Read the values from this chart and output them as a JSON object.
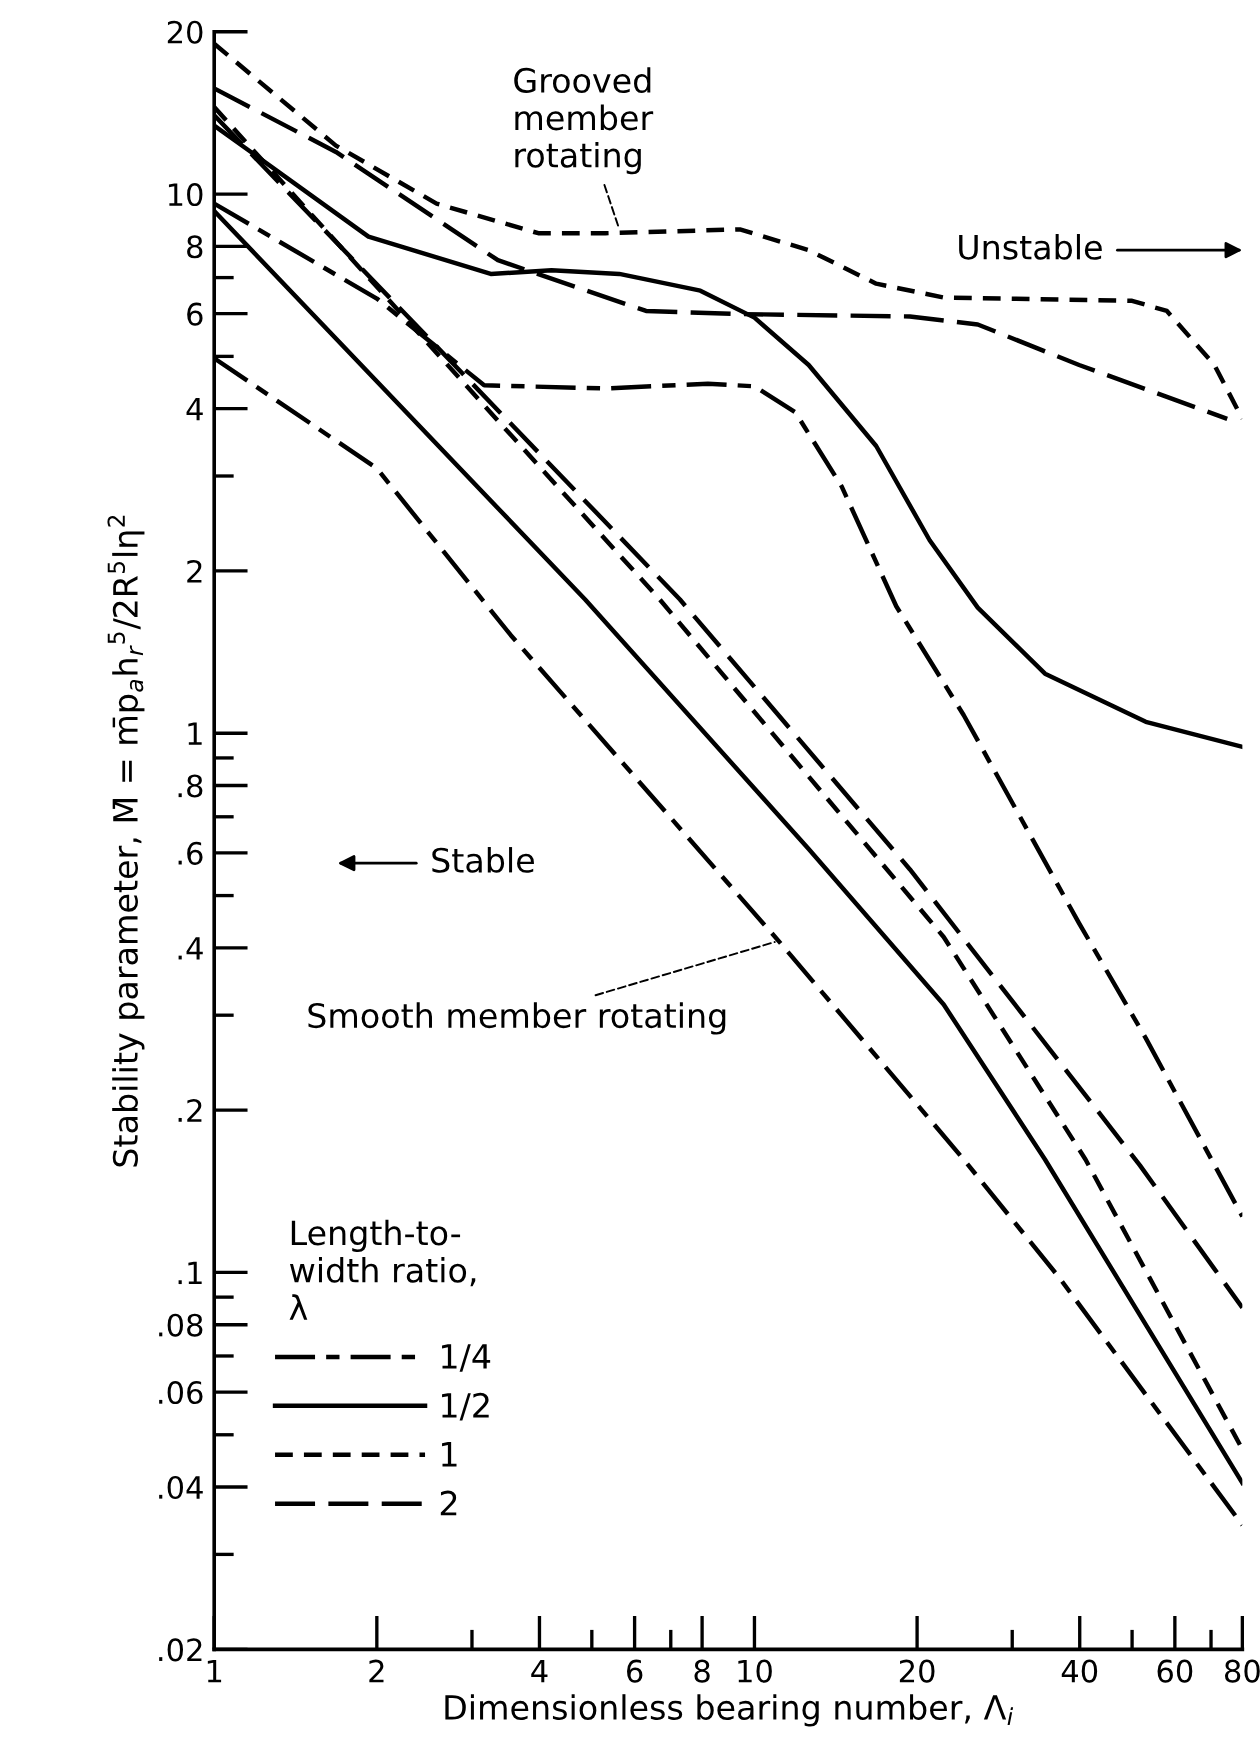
{
  "chart_data": {
    "type": "line",
    "xlabel": "Dimensionless bearing number, Λ$_{i}$",
    "ylabel": "Stability parameter, M̄ = m̄p$_{a}$h$_{r}$$^{5}$/2R$^{5}$lη$^{2}$",
    "legend_title": "Length-to-\nwidth ratio,\nλ",
    "legend": "bottom left",
    "log": "xy",
    "grid": false,
    "xlim": [
      1,
      80
    ],
    "ylim": [
      0.02,
      20
    ],
    "xticks": [
      1,
      2,
      {
        "value": 3,
        "label": null
      },
      4,
      {
        "value": 5,
        "label": null
      },
      6,
      {
        "value": 7,
        "label": null
      },
      8,
      10,
      20,
      {
        "value": 30,
        "label": null
      },
      40,
      {
        "value": 50,
        "label": null
      },
      60,
      {
        "value": 70,
        "label": null
      },
      80
    ],
    "yticks": [
      {
        "value": 0.02,
        "label": ".02"
      },
      {
        "value": 0.03,
        "label": null
      },
      {
        "value": 0.04,
        "label": ".04"
      },
      {
        "value": 0.05,
        "label": null
      },
      {
        "value": 0.06,
        "label": ".06"
      },
      {
        "value": 0.07,
        "label": null
      },
      {
        "value": 0.08,
        "label": ".08"
      },
      {
        "value": 0.09,
        "label": null
      },
      {
        "value": 0.1,
        "label": ".1"
      },
      {
        "value": 0.2,
        "label": ".2"
      },
      {
        "value": 0.3,
        "label": null
      },
      {
        "value": 0.4,
        "label": ".4"
      },
      {
        "value": 0.5,
        "label": null
      },
      {
        "value": 0.6,
        "label": ".6"
      },
      {
        "value": 0.7,
        "label": null
      },
      {
        "value": 0.8,
        "label": ".8"
      },
      {
        "value": 0.9,
        "label": null
      },
      1,
      2,
      {
        "value": 3,
        "label": null
      },
      4,
      {
        "value": 5,
        "label": null
      },
      6,
      {
        "value": 7,
        "label": null
      },
      8,
      10,
      20
    ],
    "series": [
      {
        "name": "1/4",
        "color": "#000000",
        "line_style": "dashdot",
        "x": [
          1,
          2,
          3.16,
          5.3,
          8.2,
          10,
          11.9,
          14.5,
          18.3,
          24.4,
          39.9,
          53,
          80
        ],
        "values": [
          9.6,
          6.4,
          4.42,
          4.36,
          4.45,
          4.4,
          3.94,
          2.87,
          1.72,
          1.08,
          0.444,
          0.272,
          0.127
        ]
      },
      {
        "name": "1/2",
        "color": "#000000",
        "line_style": "solid",
        "x": [
          1,
          1.93,
          3.25,
          4.21,
          5.62,
          7.94,
          10,
          12.6,
          16.8,
          21.1,
          25.9,
          34.5,
          53,
          80
        ],
        "values": [
          13.4,
          8.34,
          7.11,
          7.22,
          7.11,
          6.62,
          5.9,
          4.82,
          3.41,
          2.28,
          1.71,
          1.29,
          1.05,
          0.944
        ]
      },
      {
        "name": "1",
        "color": "#000000",
        "line_style": "dashed",
        "x": [
          1,
          1.68,
          2.58,
          3.98,
          5.3,
          9.4,
          12.6,
          16.8,
          22.4,
          50,
          58,
          71,
          80
        ],
        "values": [
          19.0,
          12.3,
          9.6,
          8.46,
          8.46,
          8.6,
          7.87,
          6.82,
          6.43,
          6.34,
          6.07,
          4.82,
          3.83
        ]
      },
      {
        "name": "2",
        "color": "#000000",
        "line_style": "longdash",
        "x": [
          1,
          1.68,
          3.35,
          6.3,
          9.4,
          19.4,
          25.9,
          39.9,
          75
        ],
        "values": [
          15.7,
          11.97,
          7.54,
          6.07,
          5.99,
          5.93,
          5.73,
          4.82,
          3.83
        ]
      },
      {
        "color": "#000000",
        "line_style": "dashdot",
        "x": [
          1,
          2,
          3.54,
          11.2,
          24.4,
          36.6,
          80
        ],
        "values": [
          4.96,
          3.1,
          1.52,
          0.407,
          0.162,
          0.098,
          0.034
        ]
      },
      {
        "color": "#000000",
        "line_style": "solid",
        "x": [
          1,
          4.86,
          12.6,
          22.4,
          34.5,
          80
        ],
        "values": [
          9.3,
          1.77,
          0.61,
          0.314,
          0.162,
          0.0407
        ]
      },
      {
        "color": "#000000",
        "line_style": "dashed",
        "x": [
          1,
          6.68,
          22.4,
          41,
          80
        ],
        "values": [
          14.5,
          1.77,
          0.419,
          0.162,
          0.047
        ]
      },
      {
        "color": "#000000",
        "line_style": "longdash",
        "x": [
          1,
          7.28,
          19.4,
          51.7,
          80
        ],
        "values": [
          14.0,
          1.77,
          0.559,
          0.158,
          0.086
        ]
      }
    ],
    "annotations": [
      {
        "text": "Grooved\nmember\nrotating",
        "x": 5.6,
        "y": 8.7
      },
      {
        "text": "Smooth member rotating",
        "x": 10.9,
        "y": 0.41
      },
      "Unstable",
      "Stable"
    ]
  }
}
